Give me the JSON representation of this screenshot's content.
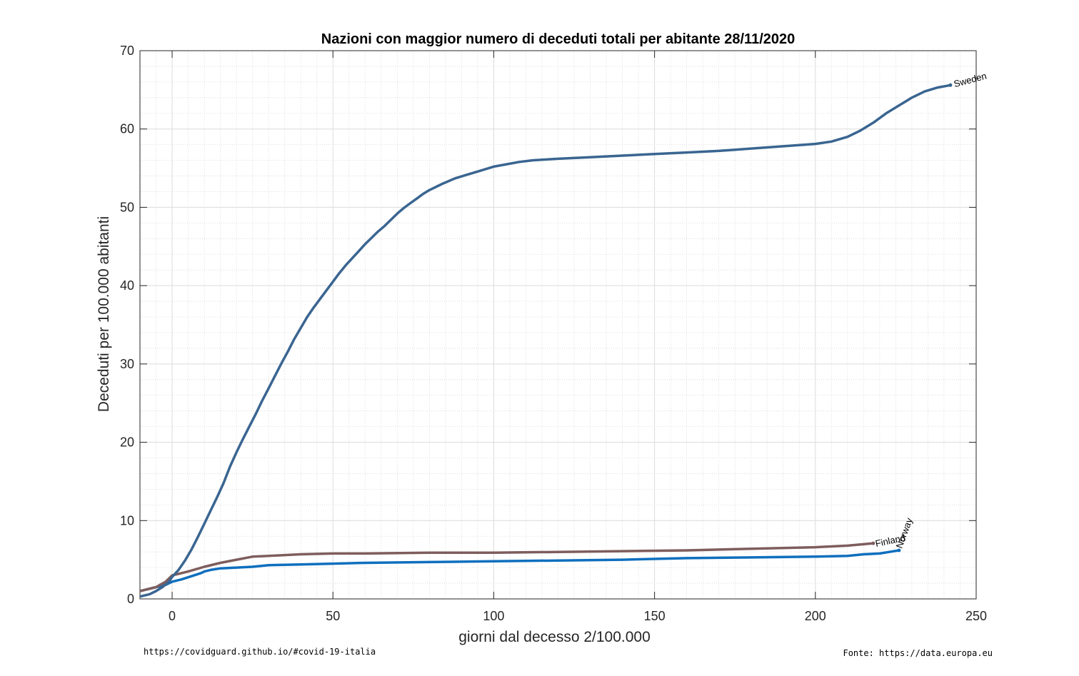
{
  "chart_data": {
    "type": "line",
    "title": "Nazioni con maggior numero di deceduti totali per abitante 28/11/2020",
    "xlabel": "giorni dal decesso 2/100.000",
    "ylabel": "Deceduti per 100.000 abitanti",
    "xlim": [
      -10,
      250
    ],
    "ylim": [
      0,
      70
    ],
    "xticks": [
      0,
      50,
      100,
      150,
      200,
      250
    ],
    "yticks": [
      0,
      10,
      20,
      30,
      40,
      50,
      60,
      70
    ],
    "grid": true,
    "minor_grid": true,
    "legend": "none (inline end labels)",
    "series": [
      {
        "name": "Sweden",
        "color": "#3a6591",
        "x": [
          -10,
          -7,
          -5,
          -3,
          -1,
          0,
          2,
          4,
          6,
          8,
          10,
          12,
          14,
          16,
          18,
          20,
          22,
          24,
          26,
          28,
          30,
          32,
          34,
          36,
          38,
          40,
          42,
          44,
          46,
          48,
          50,
          52,
          54,
          56,
          58,
          60,
          62,
          64,
          66,
          68,
          70,
          72,
          74,
          76,
          78,
          80,
          84,
          88,
          92,
          96,
          100,
          104,
          108,
          112,
          116,
          120,
          130,
          140,
          150,
          160,
          170,
          180,
          190,
          200,
          205,
          210,
          214,
          218,
          222,
          226,
          230,
          234,
          238,
          242
        ],
        "y": [
          0.3,
          0.6,
          1.0,
          1.5,
          2.2,
          2.8,
          3.7,
          4.9,
          6.3,
          7.9,
          9.6,
          11.3,
          13.0,
          14.8,
          16.9,
          18.7,
          20.4,
          22.0,
          23.6,
          25.3,
          26.9,
          28.5,
          30.1,
          31.6,
          33.2,
          34.6,
          36.0,
          37.2,
          38.3,
          39.4,
          40.5,
          41.6,
          42.6,
          43.5,
          44.4,
          45.3,
          46.1,
          46.9,
          47.6,
          48.4,
          49.2,
          49.9,
          50.5,
          51.1,
          51.7,
          52.2,
          53.0,
          53.7,
          54.2,
          54.7,
          55.2,
          55.5,
          55.8,
          56.0,
          56.1,
          56.2,
          56.4,
          56.6,
          56.8,
          57.0,
          57.2,
          57.5,
          57.8,
          58.1,
          58.4,
          59.0,
          59.8,
          60.8,
          62.0,
          63.0,
          64.0,
          64.8,
          65.3,
          65.6
        ]
      },
      {
        "name": "Finland",
        "color": "#7f5d5d",
        "x": [
          -10,
          -5,
          -2,
          0,
          5,
          10,
          15,
          20,
          25,
          30,
          40,
          50,
          60,
          80,
          100,
          120,
          140,
          160,
          180,
          200,
          210,
          218
        ],
        "y": [
          1.0,
          1.5,
          2.2,
          3.0,
          3.5,
          4.1,
          4.6,
          5.0,
          5.4,
          5.5,
          5.7,
          5.8,
          5.8,
          5.9,
          5.9,
          6.0,
          6.1,
          6.2,
          6.4,
          6.6,
          6.8,
          7.1
        ]
      },
      {
        "name": "Norway",
        "color": "#0f6fbe",
        "x": [
          -10,
          -5,
          -2,
          0,
          3,
          6,
          9,
          10,
          12,
          15,
          20,
          25,
          30,
          40,
          50,
          60,
          80,
          100,
          120,
          140,
          160,
          180,
          200,
          210,
          215,
          220,
          223,
          226
        ],
        "y": [
          1.0,
          1.5,
          1.8,
          2.2,
          2.5,
          2.9,
          3.3,
          3.5,
          3.7,
          3.9,
          4.0,
          4.1,
          4.3,
          4.4,
          4.5,
          4.6,
          4.7,
          4.8,
          4.9,
          5.0,
          5.2,
          5.3,
          5.4,
          5.5,
          5.7,
          5.8,
          6.0,
          6.2
        ]
      }
    ]
  },
  "footnotes": {
    "source_left": "https://covidguard.github.io/#covid-19-italia",
    "source_right": "Fonte: https://data.europa.eu"
  }
}
